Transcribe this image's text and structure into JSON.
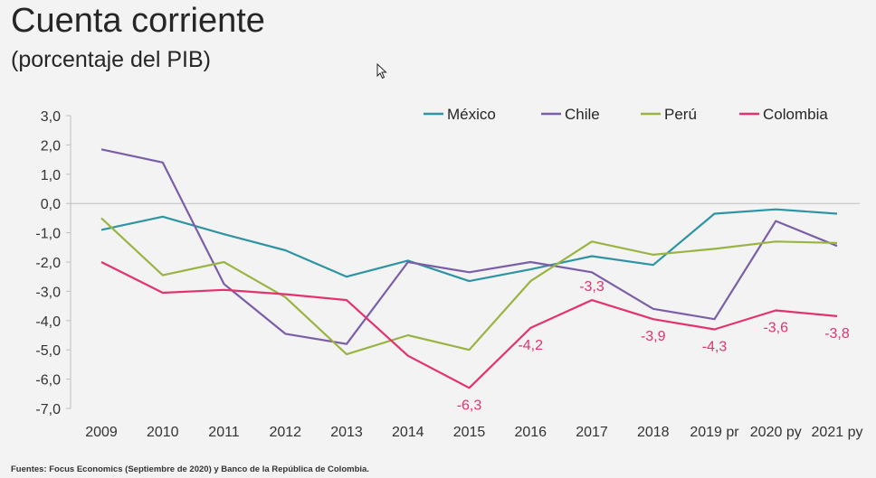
{
  "header": {
    "title": "Cuenta corriente",
    "subtitle": "(porcentaje del PIB)"
  },
  "footer": {
    "source": "Fuentes: Focus Economics (Septiembre de 2020) y Banco de la República de  Colombia."
  },
  "icons": {
    "cursor": "mouse-pointer-icon"
  },
  "chart_data": {
    "type": "line",
    "title": "Cuenta corriente",
    "subtitle": "(porcentaje del PIB)",
    "categories": [
      "2009",
      "2010",
      "2011",
      "2012",
      "2013",
      "2014",
      "2015",
      "2016",
      "2017",
      "2018",
      "2019 pr",
      "2020 py",
      "2021 py"
    ],
    "ylim": [
      -7.0,
      3.0
    ],
    "yticks": [
      "3,0",
      "2,0",
      "1,0",
      "0,0",
      "-1,0",
      "-2,0",
      "-3,0",
      "-4,0",
      "-5,0",
      "-6,0",
      "-7,0"
    ],
    "ytick_values": [
      3,
      2,
      1,
      0,
      -1,
      -2,
      -3,
      -4,
      -5,
      -6,
      -7
    ],
    "legend_position": "top-right",
    "grid": false,
    "series": [
      {
        "name": "México",
        "color": "#2e93a3",
        "values": [
          -0.9,
          -0.45,
          -1.05,
          -1.6,
          -2.5,
          -1.95,
          -2.65,
          -2.25,
          -1.8,
          -2.1,
          -0.35,
          -0.2,
          -0.35
        ]
      },
      {
        "name": "Chile",
        "color": "#7b5ea8",
        "values": [
          1.85,
          1.4,
          -2.75,
          -4.45,
          -4.8,
          -2.0,
          -2.35,
          -2.0,
          -2.35,
          -3.6,
          -3.95,
          -0.6,
          -1.45
        ]
      },
      {
        "name": "Perú",
        "color": "#9ab444",
        "values": [
          -0.5,
          -2.45,
          -2.0,
          -3.2,
          -5.15,
          -4.5,
          -5.0,
          -2.65,
          -1.3,
          -1.75,
          -1.55,
          -1.3,
          -1.35
        ]
      },
      {
        "name": "Colombia",
        "color": "#e2336d",
        "values": [
          -2.0,
          -3.05,
          -2.95,
          -3.1,
          -3.3,
          -5.2,
          -6.3,
          -4.25,
          -3.3,
          -3.95,
          -4.3,
          -3.65,
          -3.85
        ]
      }
    ],
    "data_labels": [
      {
        "series": "Colombia",
        "category": "2015",
        "text": "-6,3",
        "position": "below"
      },
      {
        "series": "Colombia",
        "category": "2016",
        "text": "-4,2",
        "position": "below"
      },
      {
        "series": "Colombia",
        "category": "2017",
        "text": "-3,3",
        "position": "above"
      },
      {
        "series": "Colombia",
        "category": "2018",
        "text": "-3,9",
        "position": "below"
      },
      {
        "series": "Colombia",
        "category": "2019 pr",
        "text": "-4,3",
        "position": "below"
      },
      {
        "series": "Colombia",
        "category": "2020 py",
        "text": "-3,6",
        "position": "below"
      },
      {
        "series": "Colombia",
        "category": "2021 py",
        "text": "-3,8",
        "position": "below"
      }
    ]
  }
}
